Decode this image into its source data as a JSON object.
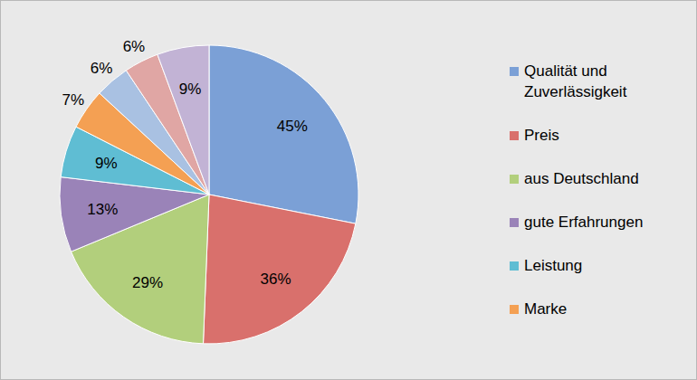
{
  "chart_data": {
    "type": "pie",
    "categories": [
      "Qualität und Zuverlässigkeit",
      "Preis",
      "aus Deutschland",
      "gute Erfahrungen",
      "Leistung",
      "Marke",
      null,
      null,
      null
    ],
    "values": [
      45,
      36,
      29,
      13,
      9,
      7,
      6,
      6,
      9
    ],
    "value_labels": [
      "45%",
      "36%",
      "29%",
      "13%",
      "9%",
      "7%",
      "6%",
      "6%",
      "9%"
    ],
    "colors": [
      "#7ba0d6",
      "#d9706c",
      "#b2cf7c",
      "#9a83b8",
      "#5fbdd3",
      "#f4a053",
      "#a9c1e2",
      "#e0a6a4",
      "#c2b3d5"
    ],
    "data_labels": true,
    "legend": "right"
  }
}
